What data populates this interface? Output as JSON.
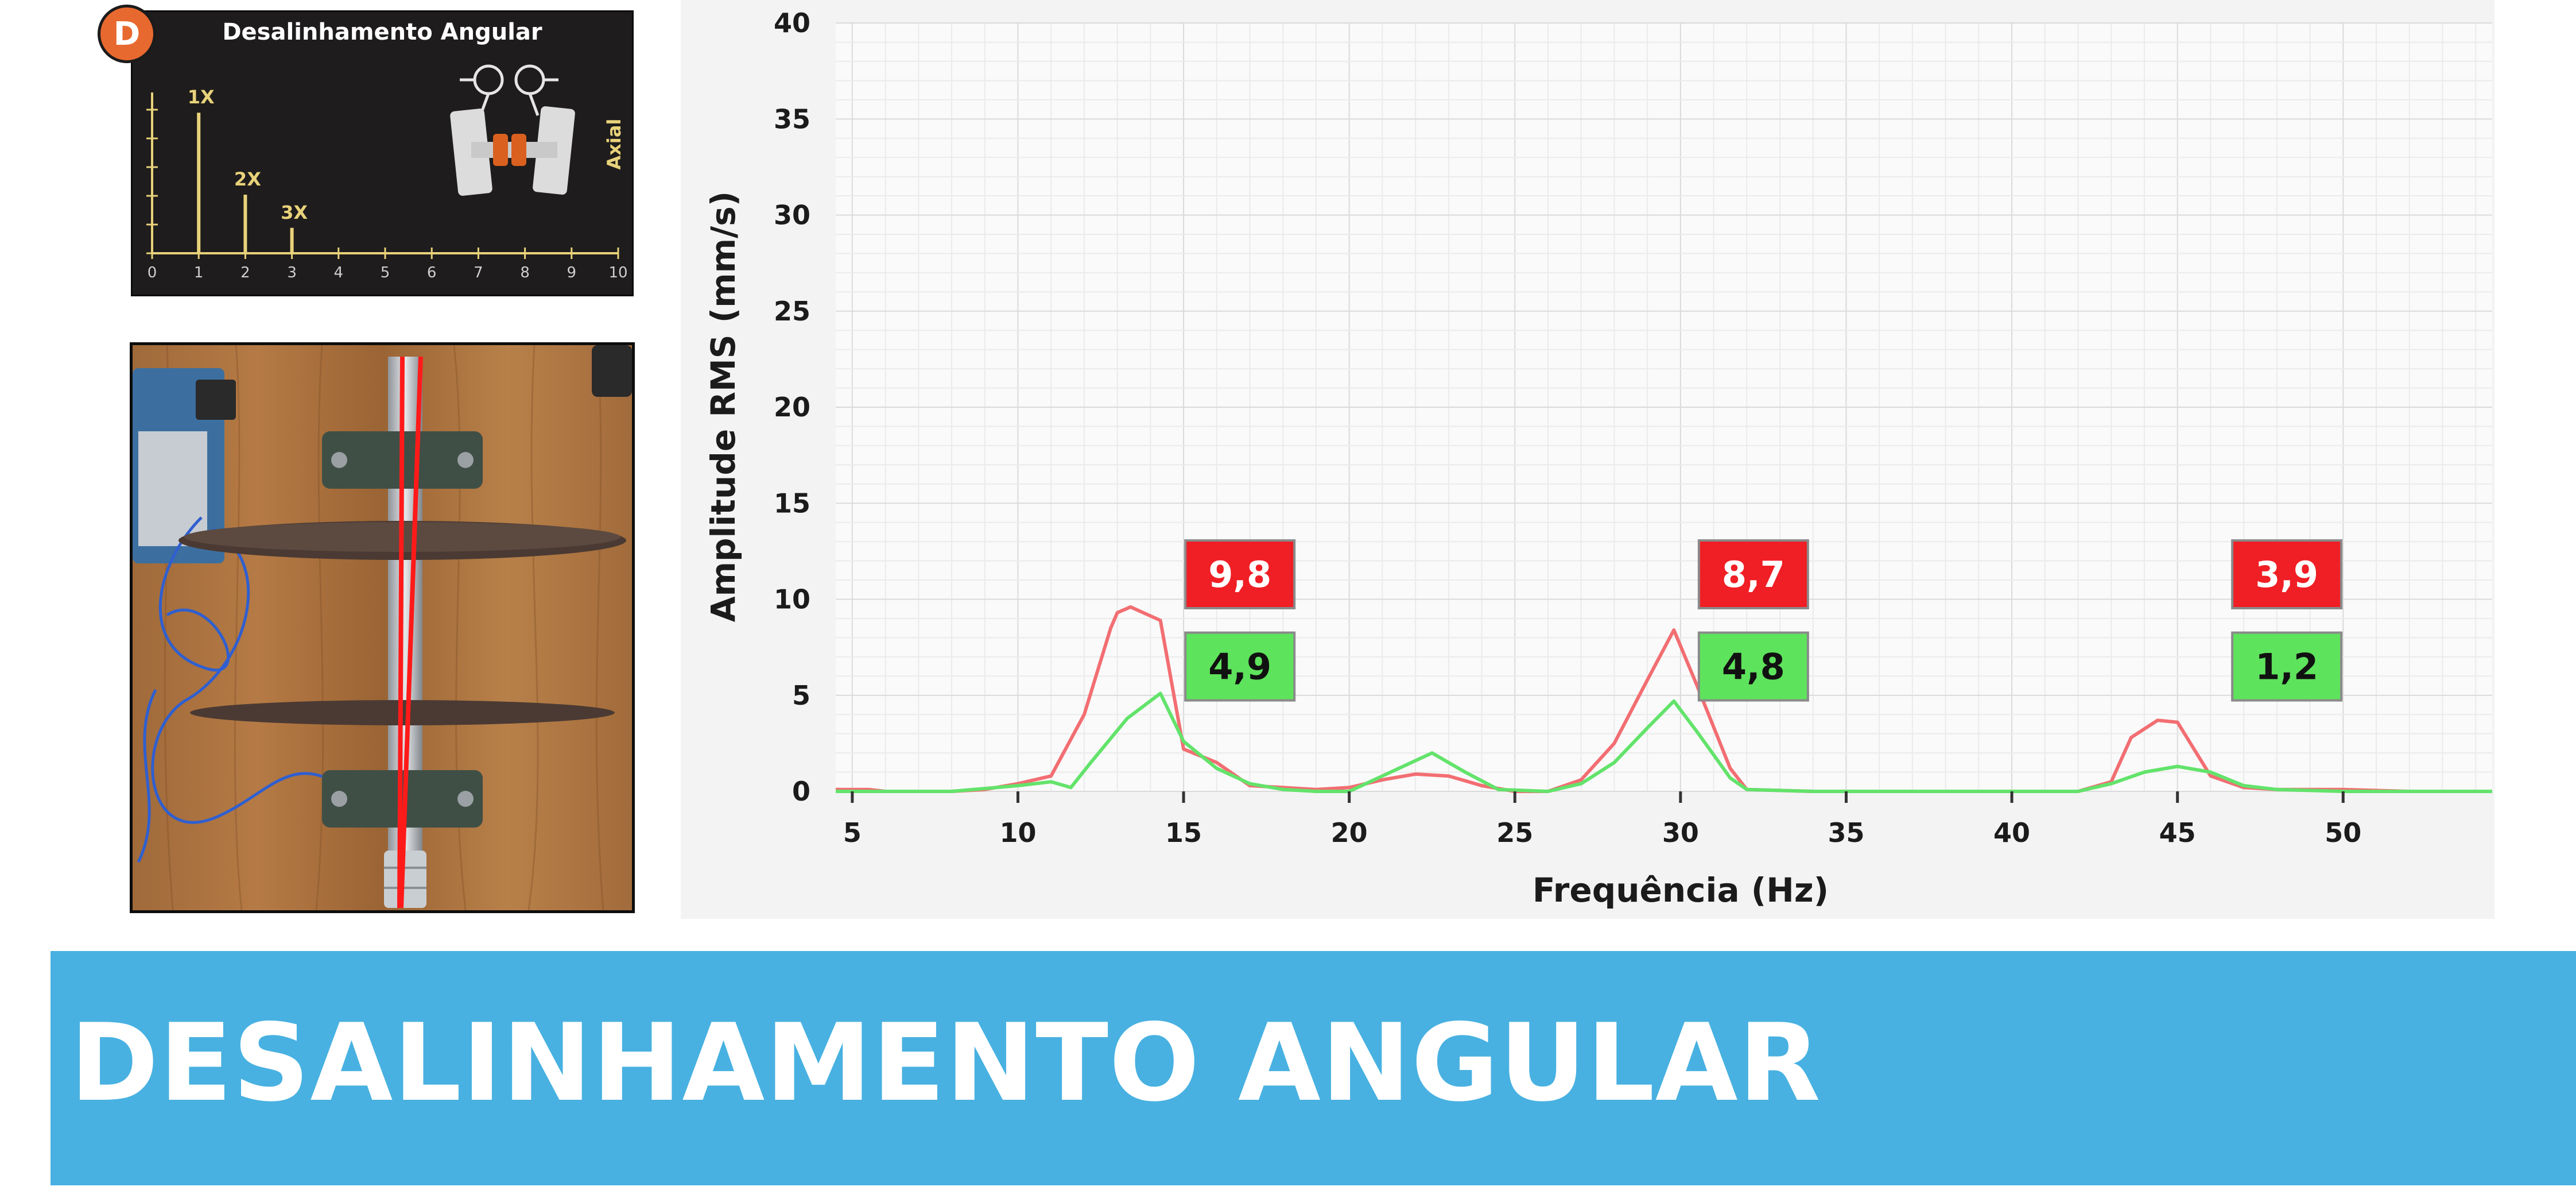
{
  "reference": {
    "badge": "D",
    "title": "Desalinhamento Angular",
    "axis_label": "Axial",
    "ticks": [
      "0",
      "1",
      "2",
      "3",
      "4",
      "5",
      "6",
      "7",
      "8",
      "9",
      "10"
    ],
    "peaks": [
      {
        "label": "1X",
        "order": 1,
        "level": 0.72
      },
      {
        "label": "2X",
        "order": 2,
        "level": 0.3
      },
      {
        "label": "3X",
        "order": 3,
        "level": 0.13
      }
    ],
    "colors": {
      "background": "#1e1c1c",
      "lines": "#e8d27a",
      "badge": "#e8692f",
      "coupling": "#d9601f"
    }
  },
  "banner": {
    "title": "DESALINHAMENTO ANGULAR",
    "color": "#48b1e1"
  },
  "chart_data": {
    "type": "line",
    "xlabel": "Frequência (Hz)",
    "ylabel": "Amplitude RMS (mm/s)",
    "xlim": [
      4.5,
      54.5
    ],
    "ylim": [
      0,
      40
    ],
    "xticks": [
      5,
      10,
      15,
      20,
      25,
      30,
      35,
      40,
      45,
      50
    ],
    "yticks": [
      0,
      5,
      10,
      15,
      20,
      25,
      30,
      35,
      40
    ],
    "grid": true,
    "series": [
      {
        "color": "#f26e72",
        "x": [
          4.5,
          5.5,
          6,
          7,
          8,
          9,
          10,
          11,
          12,
          12.8,
          13,
          13.4,
          14.3,
          15,
          16,
          17,
          18,
          19,
          20,
          21,
          22,
          23,
          24,
          25,
          26,
          27,
          28,
          29,
          29.8,
          30.5,
          31.5,
          32,
          34,
          36,
          38,
          40,
          42,
          43,
          43.6,
          44.4,
          45,
          45.5,
          46,
          47,
          48,
          50,
          52,
          54.5
        ],
        "y": [
          0.1,
          0.1,
          0,
          0,
          0,
          0.1,
          0.4,
          0.8,
          4,
          8.5,
          9.3,
          9.6,
          8.9,
          2.2,
          1.5,
          0.3,
          0.2,
          0.1,
          0.2,
          0.6,
          0.9,
          0.8,
          0.3,
          0,
          0,
          0.6,
          2.5,
          5.8,
          8.4,
          5.5,
          1.2,
          0.1,
          0,
          0,
          0,
          0,
          0,
          0.5,
          2.8,
          3.7,
          3.6,
          2.2,
          0.8,
          0.2,
          0.1,
          0.1,
          0,
          0
        ]
      },
      {
        "color": "#63e36b",
        "x": [
          4.5,
          6,
          8,
          10,
          11,
          11.6,
          12.2,
          13.3,
          14.3,
          15,
          16,
          17,
          18,
          19,
          20,
          21,
          22.5,
          23.5,
          24.5,
          26,
          27,
          28,
          29,
          29.8,
          30.5,
          31.5,
          32,
          34,
          36,
          38,
          40,
          42,
          43,
          44,
          45,
          46,
          47,
          48,
          50,
          52,
          54.5
        ],
        "y": [
          0,
          0,
          0,
          0.3,
          0.5,
          0.2,
          1.5,
          3.8,
          5.1,
          2.6,
          1.2,
          0.4,
          0.1,
          0,
          0,
          0.8,
          2,
          1,
          0.1,
          0,
          0.4,
          1.5,
          3.3,
          4.7,
          3.1,
          0.7,
          0.1,
          0,
          0,
          0,
          0,
          0,
          0.4,
          1,
          1.3,
          1,
          0.3,
          0.1,
          0,
          0,
          0
        ]
      }
    ],
    "annotations": [
      {
        "text": "9,8",
        "x": 16.7,
        "y": 11.3,
        "color": "#f01e25"
      },
      {
        "text": "8,7",
        "x": 32.2,
        "y": 11.3,
        "color": "#f01e25"
      },
      {
        "text": "3,9",
        "x": 48.3,
        "y": 11.3,
        "color": "#f01e25"
      },
      {
        "text": "4,9",
        "x": 16.7,
        "y": 6.5,
        "color": "#5ee35c"
      },
      {
        "text": "4,8",
        "x": 32.2,
        "y": 6.5,
        "color": "#5ee35c"
      },
      {
        "text": "1,2",
        "x": 48.3,
        "y": 6.5,
        "color": "#5ee35c"
      }
    ]
  }
}
